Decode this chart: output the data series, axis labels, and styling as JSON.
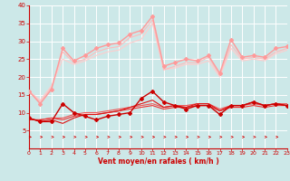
{
  "xlabel": "Vent moyen/en rafales ( km/h )",
  "xlim": [
    0,
    23
  ],
  "ylim": [
    0,
    40
  ],
  "yticks": [
    5,
    10,
    15,
    20,
    25,
    30,
    35,
    40
  ],
  "xticks": [
    0,
    1,
    2,
    3,
    4,
    5,
    6,
    7,
    8,
    9,
    10,
    11,
    12,
    13,
    14,
    15,
    16,
    17,
    18,
    19,
    20,
    21,
    22,
    23
  ],
  "bg_color": "#cce8e8",
  "grid_color": "#ffffff",
  "series": [
    {
      "x": [
        0,
        1,
        2,
        3,
        4,
        5,
        6,
        7,
        8,
        9,
        10,
        11,
        12,
        13,
        14,
        15,
        16,
        17,
        18,
        19,
        20,
        21,
        22,
        23
      ],
      "y": [
        8.5,
        7.5,
        7.5,
        12.5,
        10,
        9,
        8,
        9,
        9.5,
        10,
        14,
        16,
        13,
        12,
        11,
        12,
        12,
        9.5,
        12,
        12,
        13,
        12,
        12.5,
        12
      ],
      "color": "#cc0000",
      "lw": 1.0,
      "marker": "D",
      "ms": 2.0,
      "zorder": 5
    },
    {
      "x": [
        0,
        1,
        2,
        3,
        4,
        5,
        6,
        7,
        8,
        9,
        10,
        11,
        12,
        13,
        14,
        15,
        16,
        17,
        18,
        19,
        20,
        21,
        22,
        23
      ],
      "y": [
        8.5,
        7.5,
        8,
        7,
        8.5,
        9.5,
        9.5,
        10,
        10.5,
        11.5,
        12.5,
        13.5,
        11.5,
        12,
        11.5,
        12.5,
        12.5,
        10.5,
        12,
        12,
        13,
        12,
        12.5,
        12
      ],
      "color": "#dd1111",
      "lw": 0.8,
      "marker": null,
      "ms": 0,
      "zorder": 4
    },
    {
      "x": [
        0,
        1,
        2,
        3,
        4,
        5,
        6,
        7,
        8,
        9,
        10,
        11,
        12,
        13,
        14,
        15,
        16,
        17,
        18,
        19,
        20,
        21,
        22,
        23
      ],
      "y": [
        8,
        8,
        8.5,
        8,
        9,
        9.5,
        9.5,
        10,
        10.5,
        11,
        11.5,
        12,
        11,
        11.5,
        11.5,
        12,
        12,
        10.5,
        11.5,
        11.5,
        12,
        11.5,
        12,
        12
      ],
      "color": "#ee3333",
      "lw": 0.8,
      "marker": null,
      "ms": 0,
      "zorder": 3
    },
    {
      "x": [
        0,
        1,
        2,
        3,
        4,
        5,
        6,
        7,
        8,
        9,
        10,
        11,
        12,
        13,
        14,
        15,
        16,
        17,
        18,
        19,
        20,
        21,
        22,
        23
      ],
      "y": [
        8,
        8,
        8.5,
        8.5,
        9.5,
        10,
        10,
        10.5,
        11,
        11.5,
        12,
        12.5,
        11.5,
        12,
        12,
        12.5,
        12.5,
        11,
        12,
        12,
        12.5,
        12,
        12.5,
        12.5
      ],
      "color": "#ee5555",
      "lw": 0.8,
      "marker": null,
      "ms": 0,
      "zorder": 2
    },
    {
      "x": [
        0,
        1,
        2,
        3,
        4,
        5,
        6,
        7,
        8,
        9,
        10,
        11,
        12,
        13,
        14,
        15,
        16,
        17,
        18,
        19,
        20,
        21,
        22,
        23
      ],
      "y": [
        16,
        12.5,
        16.5,
        28,
        24.5,
        26,
        28,
        29,
        29.5,
        32,
        33,
        37,
        23,
        24,
        25,
        24.5,
        26,
        21,
        30.5,
        25.5,
        26,
        25.5,
        28,
        28.5
      ],
      "color": "#ff9999",
      "lw": 1.0,
      "marker": "D",
      "ms": 2.0,
      "zorder": 5
    },
    {
      "x": [
        0,
        1,
        2,
        3,
        4,
        5,
        6,
        7,
        8,
        9,
        10,
        11,
        12,
        13,
        14,
        15,
        16,
        17,
        18,
        19,
        20,
        21,
        22,
        23
      ],
      "y": [
        16,
        13,
        17,
        27,
        24,
        25,
        27,
        28,
        28.5,
        31,
        32,
        36,
        22,
        23,
        24,
        24,
        25.5,
        20.5,
        29,
        25,
        25.5,
        25,
        27,
        28
      ],
      "color": "#ffbbbb",
      "lw": 0.8,
      "marker": null,
      "ms": 0,
      "zorder": 4
    },
    {
      "x": [
        0,
        1,
        2,
        3,
        4,
        5,
        6,
        7,
        8,
        9,
        10,
        11,
        12,
        13,
        14,
        15,
        16,
        17,
        18,
        19,
        20,
        21,
        22,
        23
      ],
      "y": [
        16,
        13.5,
        17.5,
        25,
        23.5,
        24.5,
        26,
        27,
        27.5,
        29.5,
        30.5,
        35,
        22,
        22.5,
        23.5,
        23.5,
        24.5,
        20,
        28,
        24.5,
        25,
        24.5,
        26.5,
        27.5
      ],
      "color": "#ffcccc",
      "lw": 0.8,
      "marker": null,
      "ms": 0,
      "zorder": 3
    }
  ]
}
